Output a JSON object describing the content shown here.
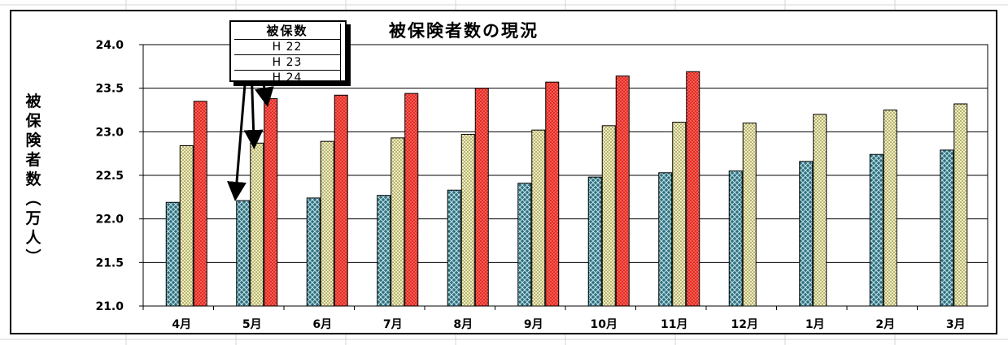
{
  "chart_data": {
    "type": "bar",
    "title": "被保険者数の現況",
    "ylabel": "被保険者数（万人）",
    "categories": [
      "4月",
      "5月",
      "6月",
      "7月",
      "8月",
      "9月",
      "10月",
      "11月",
      "12月",
      "1月",
      "2月",
      "3月"
    ],
    "ylim": [
      21.0,
      24.0
    ],
    "yticks": [
      "21.0",
      "21.5",
      "22.0",
      "22.5",
      "23.0",
      "23.5",
      "24.0"
    ],
    "legend_title": "被保数",
    "legend_placement": "top-left",
    "grid": true,
    "series": [
      {
        "name": "H 22",
        "color": "#2e6f7e",
        "values": [
          22.19,
          22.21,
          22.24,
          22.27,
          22.33,
          22.41,
          22.48,
          22.53,
          22.55,
          22.66,
          22.74,
          22.79
        ]
      },
      {
        "name": "H 23",
        "color": "#f3efb8",
        "values": [
          22.84,
          22.87,
          22.89,
          22.93,
          22.97,
          23.02,
          23.07,
          23.11,
          23.1,
          23.2,
          23.25,
          23.32
        ]
      },
      {
        "name": "H 24",
        "color": "#e62b22",
        "values": [
          23.35,
          23.38,
          23.42,
          23.44,
          23.5,
          23.57,
          23.64,
          23.69,
          null,
          null,
          null,
          null
        ]
      }
    ]
  }
}
